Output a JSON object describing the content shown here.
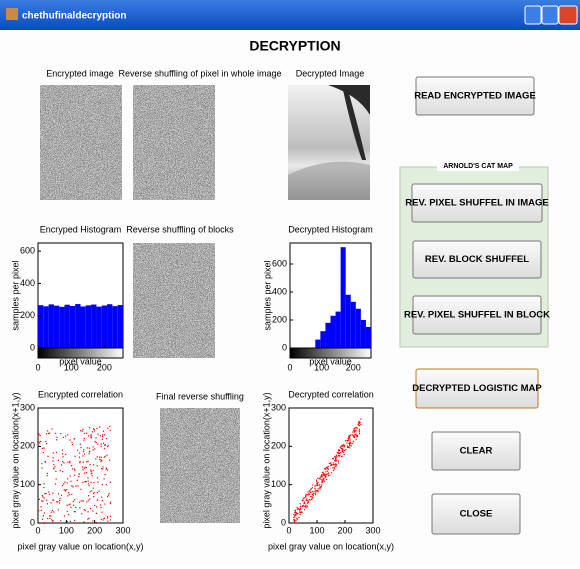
{
  "window": {
    "title": "chethufinaldecryption"
  },
  "header": {
    "title": "DECRYPTION"
  },
  "images": [
    {
      "label": "Encrypted image"
    },
    {
      "label": "Reverse shuffling of pixel in whole image"
    },
    {
      "label": "Decrypted Image"
    },
    {
      "label": "Reverse shuffling of blocks"
    },
    {
      "label": "Final reverse shuffling"
    }
  ],
  "histograms": [
    {
      "type": "histogram",
      "title": "Encryped Histogram",
      "xlabel": "pixel value",
      "ylabel": "samples per pixel",
      "color": "#0000ff",
      "bins": [
        0,
        16,
        32,
        48,
        64,
        80,
        96,
        112,
        128,
        144,
        160,
        176,
        192,
        208,
        224,
        240,
        256
      ],
      "values": [
        265,
        258,
        270,
        262,
        255,
        268,
        260,
        272,
        257,
        264,
        269,
        256,
        263,
        271,
        259,
        266
      ],
      "xlim": [
        0,
        256
      ],
      "ylim": [
        0,
        650
      ],
      "xticks": [
        0,
        100,
        200
      ],
      "yticks": [
        0,
        200,
        400,
        600
      ]
    },
    {
      "type": "histogram",
      "title": "Decrypted Histogram",
      "xlabel": "pixel value",
      "ylabel": "samples per pixel",
      "color": "#0000ff",
      "bins": [
        0,
        16,
        32,
        48,
        64,
        80,
        96,
        112,
        128,
        144,
        160,
        176,
        192,
        208,
        224,
        240,
        256
      ],
      "values": [
        0,
        0,
        0,
        0,
        0,
        60,
        120,
        180,
        230,
        260,
        720,
        380,
        330,
        280,
        200,
        150
      ],
      "xlim": [
        0,
        256
      ],
      "ylim": [
        0,
        750
      ],
      "xticks": [
        0,
        100,
        200
      ],
      "yticks": [
        0,
        200,
        400,
        600
      ]
    }
  ],
  "correlations": [
    {
      "type": "scatter",
      "title": "Encrypted correlation",
      "xlabel": "pixel gray value on location(x,y)",
      "ylabel": "pixel gray value on location(x+1,y)",
      "color": "#ff0000",
      "xlim": [
        0,
        300
      ],
      "ylim": [
        0,
        300
      ],
      "xticks": [
        0,
        100,
        200,
        300
      ],
      "yticks": [
        0,
        100,
        200,
        300
      ]
    },
    {
      "type": "scatter",
      "title": "Decrypted correlation",
      "xlabel": "pixel gray value on location(x,y)",
      "ylabel": "pixel gray value on location(x+1,y)",
      "color": "#ff0000",
      "xlim": [
        0,
        300
      ],
      "ylim": [
        0,
        300
      ],
      "xticks": [
        0,
        100,
        200,
        300
      ],
      "yticks": [
        0,
        100,
        200,
        300
      ]
    }
  ],
  "buttons": {
    "read": "READ ENCRYPTED IMAGE",
    "logistic": "DECRYPTED LOGISTIC MAP",
    "clear": "CLEAR",
    "close": "CLOSE"
  },
  "cat_map": {
    "title": "ARNOLD'S CAT MAP",
    "buttons": [
      "REV. PIXEL SHUFFEL IN IMAGE",
      "REV. BLOCK SHUFFEL",
      "REV. PIXEL SHUFFEL IN BLOCK"
    ]
  }
}
